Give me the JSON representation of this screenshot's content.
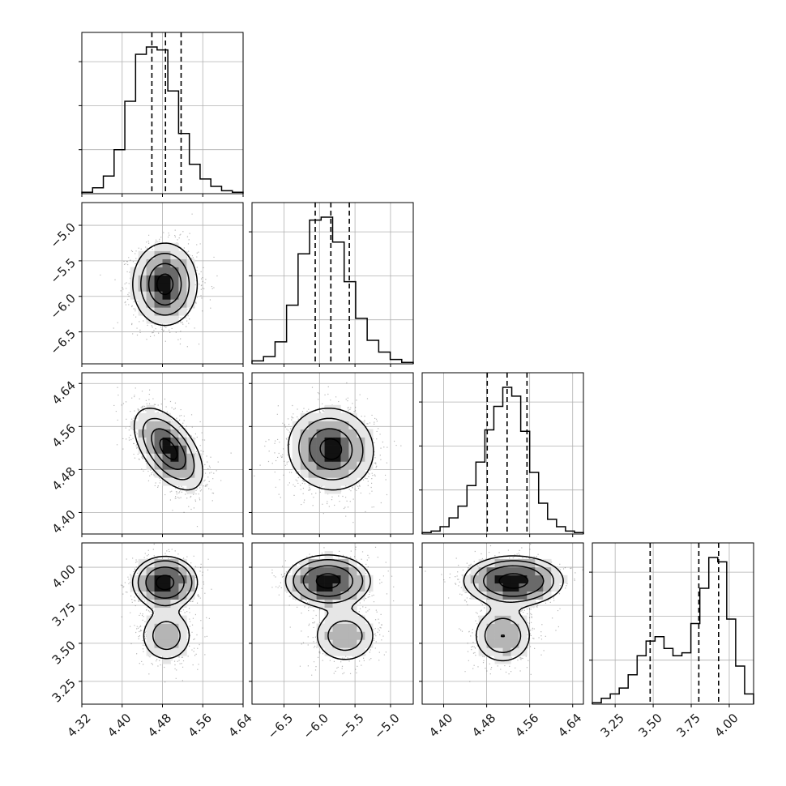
{
  "chart_data": {
    "type": "corner",
    "grid": true,
    "parameters": [
      {
        "hist": [
          0.01,
          0.04,
          0.12,
          0.3,
          0.63,
          0.95,
          1.0,
          0.98,
          0.7,
          0.41,
          0.2,
          0.1,
          0.05,
          0.02,
          0.01
        ],
        "range": [
          4.32,
          4.64
        ],
        "quantiles": [
          4.459,
          4.486,
          4.517
        ],
        "ticks": [
          4.32,
          4.4,
          4.48,
          4.56,
          4.64
        ],
        "tick_labels": [
          "4.32",
          "4.40",
          "4.48",
          "4.56",
          "4.64"
        ]
      },
      {
        "hist": [
          0.02,
          0.05,
          0.15,
          0.4,
          0.75,
          0.98,
          1.0,
          0.83,
          0.56,
          0.31,
          0.16,
          0.08,
          0.03,
          0.01
        ],
        "range": [
          -6.95,
          -4.68
        ],
        "quantiles": [
          -6.06,
          -5.84,
          -5.58
        ],
        "ticks": [
          -6.5,
          -6.0,
          -5.5,
          -5.0
        ],
        "tick_labels": [
          "−6.5",
          "−6.0",
          "−5.5",
          "−5.0"
        ]
      },
      {
        "hist": [
          0.01,
          0.02,
          0.05,
          0.11,
          0.19,
          0.33,
          0.49,
          0.71,
          0.87,
          1.0,
          0.94,
          0.7,
          0.42,
          0.21,
          0.1,
          0.05,
          0.02,
          0.01
        ],
        "range": [
          4.36,
          4.66
        ],
        "quantiles": [
          4.481,
          4.518,
          4.555
        ],
        "ticks": [
          4.4,
          4.48,
          4.56,
          4.64
        ],
        "tick_labels": [
          "4.40",
          "4.48",
          "4.56",
          "4.64"
        ]
      },
      {
        "hist": [
          0.01,
          0.04,
          0.07,
          0.11,
          0.2,
          0.33,
          0.43,
          0.46,
          0.38,
          0.33,
          0.35,
          0.55,
          0.79,
          1.0,
          0.97,
          0.58,
          0.26,
          0.07
        ],
        "range": [
          3.1,
          4.16
        ],
        "quantiles": [
          3.48,
          3.8,
          3.93
        ],
        "ticks": [
          3.25,
          3.5,
          3.75,
          4.0
        ],
        "tick_labels": [
          "3.25",
          "3.50",
          "3.75",
          "4.00"
        ]
      }
    ],
    "pairs": [
      {
        "row": 1,
        "col": 0,
        "mean": [
          4.485,
          -5.83
        ],
        "sd": [
          0.032,
          0.29
        ],
        "rho": 0.0,
        "modes": []
      },
      {
        "row": 2,
        "col": 0,
        "mean": [
          4.492,
          4.518
        ],
        "sd": [
          0.034,
          0.038
        ],
        "rho": -0.55,
        "modes": []
      },
      {
        "row": 2,
        "col": 1,
        "mean": [
          -5.84,
          4.518
        ],
        "sd": [
          0.3,
          0.038
        ],
        "rho": -0.05,
        "modes": []
      },
      {
        "row": 3,
        "col": 0,
        "mean": null,
        "sd": null,
        "rho": 0.0,
        "modes": [
          {
            "w": 0.72,
            "mean": [
              4.485,
              3.9
            ],
            "sd": [
              0.03,
              0.08
            ]
          },
          {
            "w": 0.28,
            "mean": [
              4.488,
              3.55
            ],
            "sd": [
              0.03,
              0.1
            ]
          }
        ]
      },
      {
        "row": 3,
        "col": 1,
        "mean": null,
        "sd": null,
        "rho": 0.0,
        "modes": [
          {
            "w": 0.72,
            "mean": [
              -5.88,
              3.91
            ],
            "sd": [
              0.28,
              0.08
            ]
          },
          {
            "w": 0.28,
            "mean": [
              -5.64,
              3.55
            ],
            "sd": [
              0.25,
              0.1
            ]
          }
        ]
      },
      {
        "row": 3,
        "col": 2,
        "mean": null,
        "sd": null,
        "rho": 0.0,
        "modes": [
          {
            "w": 0.72,
            "mean": [
              4.53,
              3.91
            ],
            "sd": [
              0.045,
              0.08
            ]
          },
          {
            "w": 0.28,
            "mean": [
              4.51,
              3.55
            ],
            "sd": [
              0.03,
              0.1
            ]
          }
        ]
      }
    ]
  }
}
